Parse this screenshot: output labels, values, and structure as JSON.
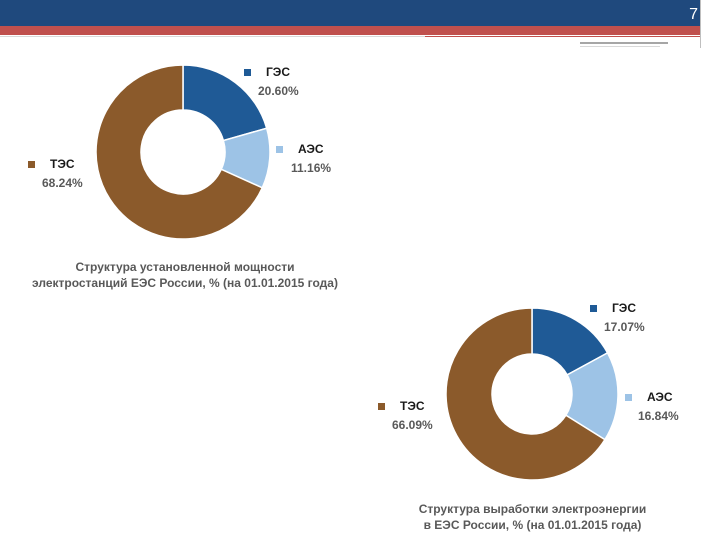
{
  "slide": {
    "page_number": "7"
  },
  "chart_data": [
    {
      "type": "pie",
      "title": "Структура установленной мощности электростанций ЕЭС России, % (на 01.01.2015 года)",
      "title_lines": [
        "Структура установленной мощности",
        "электростанций ЕЭС России, % (на 01.01.2015 года)"
      ],
      "donut": true,
      "slices": [
        {
          "label": "ГЭС",
          "value": 20.6,
          "value_label": "20.60%",
          "color": "#1f5a96"
        },
        {
          "label": "АЭС",
          "value": 11.16,
          "value_label": "11.16%",
          "color": "#9dc3e6"
        },
        {
          "label": "ТЭС",
          "value": 68.24,
          "value_label": "68.24%",
          "color": "#8b5a2b"
        }
      ]
    },
    {
      "type": "pie",
      "title": "Структура выработки электроэнергии в ЕЭС России, % (на 01.01.2015 года)",
      "title_lines": [
        "Структура выработки электроэнергии",
        "в ЕЭС России, % (на 01.01.2015 года)"
      ],
      "donut": true,
      "slices": [
        {
          "label": "ГЭС",
          "value": 17.07,
          "value_label": "17.07%",
          "color": "#1f5a96"
        },
        {
          "label": "АЭС",
          "value": 16.84,
          "value_label": "16.84%",
          "color": "#9dc3e6"
        },
        {
          "label": "ТЭС",
          "value": 66.09,
          "value_label": "66.09%",
          "color": "#8b5a2b"
        }
      ]
    }
  ]
}
